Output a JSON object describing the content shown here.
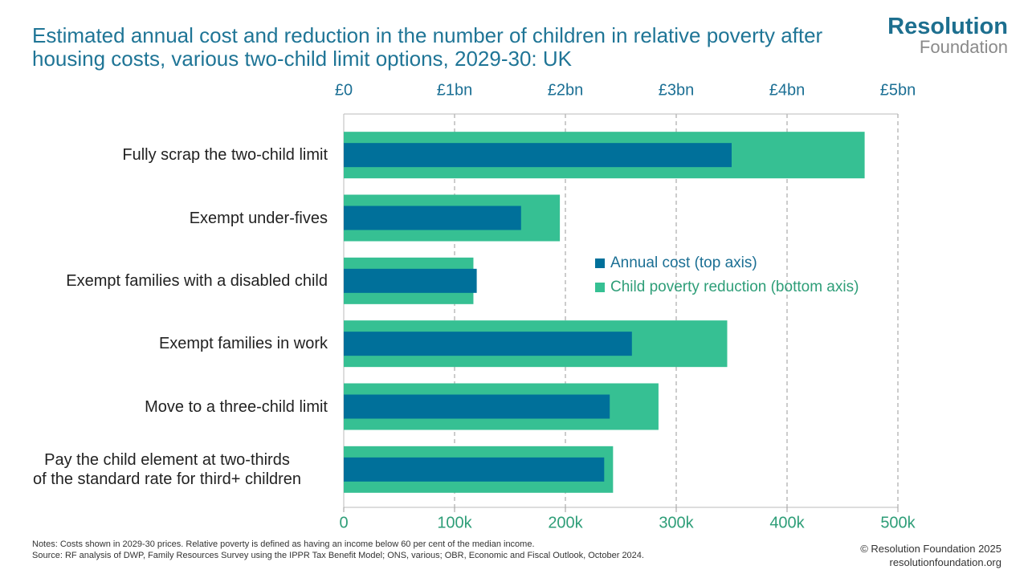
{
  "chart_data": {
    "type": "bar",
    "orientation": "horizontal",
    "title": "Estimated annual cost and reduction in the number of children in relative poverty after housing costs, various two-child limit options, 2029-30: UK",
    "logo": [
      "Resolution",
      "Foundation"
    ],
    "categories": [
      "Fully scrap the two-child limit",
      "Exempt under-fives",
      "Exempt families with a disabled child",
      "Exempt families in work",
      "Move to a three-child limit",
      "Pay the child element at two-thirds\nof the standard rate for third+ children"
    ],
    "series": [
      {
        "name": "Child poverty reduction (bottom axis)",
        "color": "#36c093",
        "axis": "x",
        "values": [
          470000,
          195000,
          117000,
          346000,
          284000,
          243000
        ]
      },
      {
        "name": "Annual cost (top axis)",
        "color": "#00709a",
        "axis": "x2",
        "values": [
          3.5,
          1.6,
          1.2,
          2.6,
          2.4,
          2.35
        ]
      }
    ],
    "xlim": [
      0,
      500000
    ],
    "xticks": [
      0,
      {
        "value": 100000,
        "label": "100k"
      },
      {
        "value": 200000,
        "label": "200k"
      },
      {
        "value": 300000,
        "label": "300k"
      },
      {
        "value": 400000,
        "label": "400k"
      },
      {
        "value": 500000,
        "label": "500k"
      }
    ],
    "x2lim": [
      0,
      5
    ],
    "x2ticks": [
      {
        "value": 0,
        "label": "£0"
      },
      {
        "value": 1,
        "label": "£1bn"
      },
      {
        "value": 2,
        "label": "£2bn"
      },
      {
        "value": 3,
        "label": "£3bn"
      },
      {
        "value": 4,
        "label": "£4bn"
      },
      {
        "value": 5,
        "label": "£5bn"
      }
    ],
    "grid": true,
    "notes": "Notes: Costs shown in 2029-30 prices. Relative poverty is defined as having an income below 60 per cent of the median income.",
    "source": "Source: RF analysis of DWP, Family Resources Survey using the IPPR Tax Benefit Model; ONS, various; OBR, Economic and Fiscal Outlook, October 2024.",
    "credit": [
      "© Resolution Foundation 2025",
      "resolutionfoundation.org"
    ]
  }
}
